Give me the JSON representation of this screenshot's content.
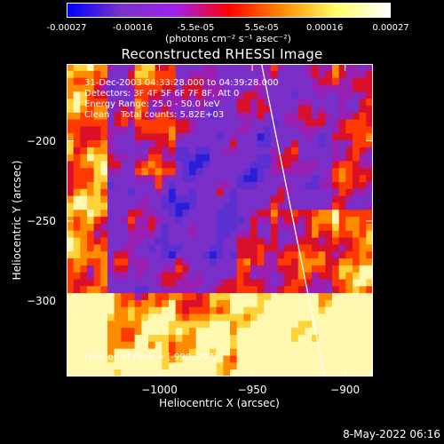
{
  "colorbar": {
    "ticks": [
      {
        "label": "-0.00027",
        "value": -0.00027
      },
      {
        "label": "-0.00016",
        "value": -0.00016
      },
      {
        "label": "-5.5e-05",
        "value": -5.5e-05
      },
      {
        "label": "5.5e-05",
        "value": 5.5e-05
      },
      {
        "label": "0.00016",
        "value": 0.00016
      },
      {
        "label": "0.00027",
        "value": 0.00027
      }
    ],
    "units": "(photons cm⁻² s⁻¹ asec⁻²)",
    "range": [
      -0.00027,
      0.00027
    ],
    "colors": [
      "#0000ff",
      "#7a32c8",
      "#a020f0",
      "#ff0000",
      "#ff8c00",
      "#ffff66",
      "#ffffff"
    ]
  },
  "chart_data": {
    "type": "heatmap",
    "title": "Reconstructed RHESSI Image",
    "xlabel": "Heliocentric X (arcsec)",
    "ylabel": "Heliocentric Y (arcsec)",
    "xlim": [
      -1050,
      -885
    ],
    "ylim": [
      -347,
      -152
    ],
    "xticks": [
      {
        "label": "−1000",
        "value": -1000
      },
      {
        "label": "−950",
        "value": -950
      },
      {
        "label": "−900",
        "value": -900
      }
    ],
    "yticks": [
      {
        "label": "−200",
        "value": -200
      },
      {
        "label": "−250",
        "value": -250
      },
      {
        "label": "−300",
        "value": -300
      }
    ],
    "limb_line": [
      [
        -945,
        -152
      ],
      [
        -911,
        -347
      ]
    ],
    "annotations": {
      "time": "31-Dec-2003 04:33:28.000 to 04:39:28.000",
      "detectors": "Detectors: 3F 4F 5F 6F 7F 8F, Att 0",
      "energy": "Energy Range: 25.0 - 50.0 keV",
      "clean": "Clean    Total counts: 5.82E+03",
      "peak": "Position of Peak = [-990,-207]"
    }
  },
  "footer": {
    "date": "8-May-2022 06:16"
  }
}
